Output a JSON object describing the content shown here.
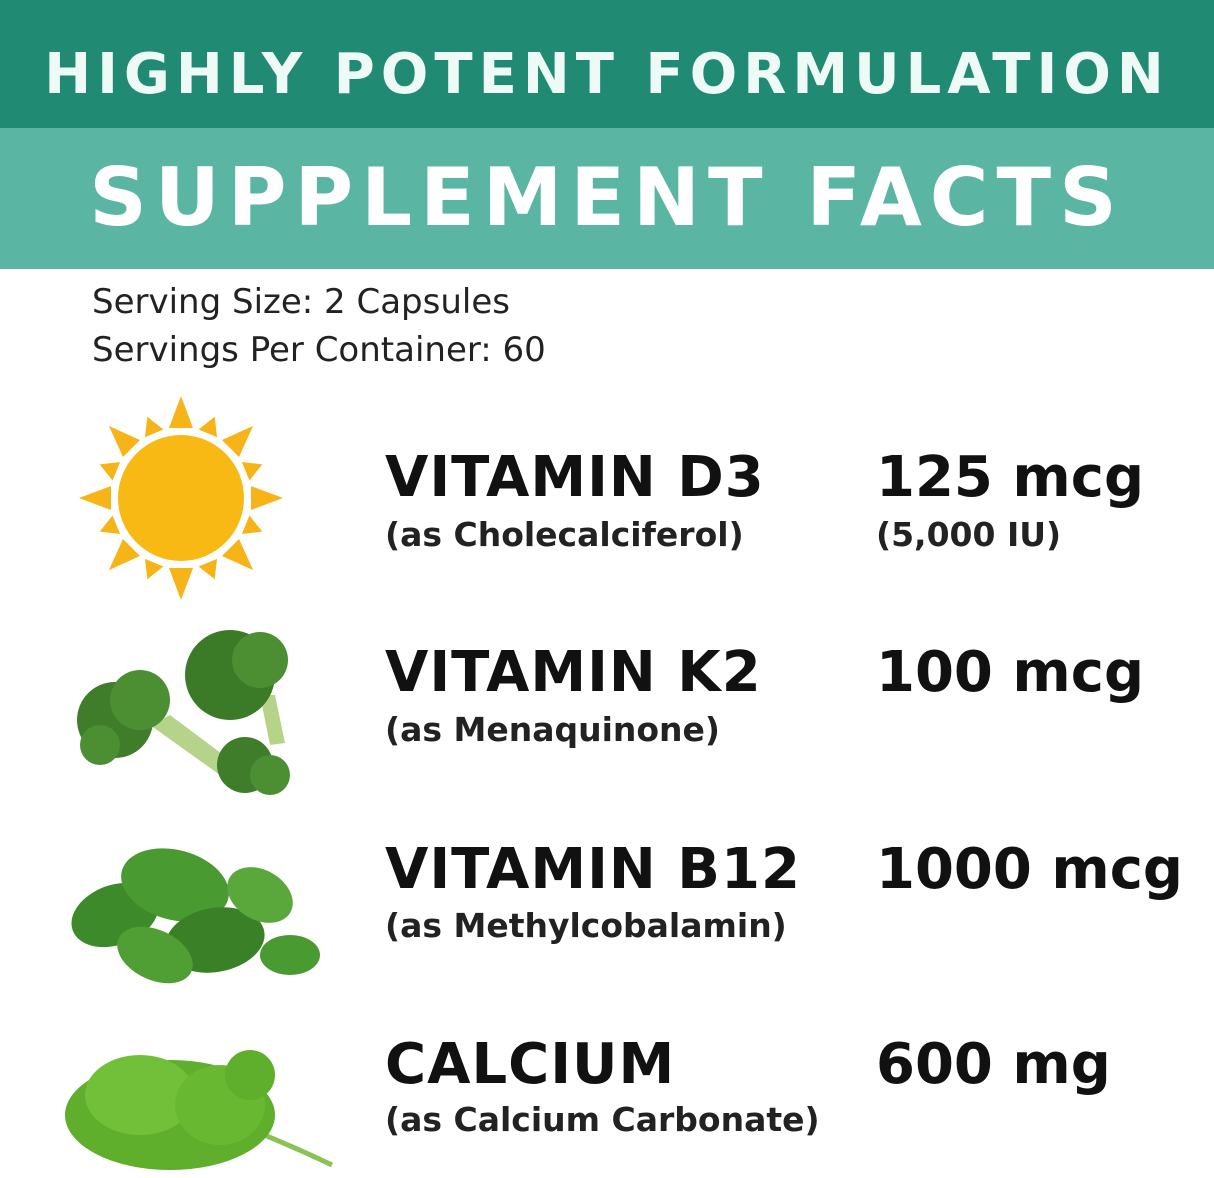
{
  "header": {
    "tagline": "HIGHLY POTENT FORMULATION",
    "title": "SUPPLEMENT FACTS",
    "colors": {
      "dark": "#208a72",
      "light": "#5ab6a2"
    }
  },
  "serving": {
    "size": "Serving Size: 2 Capsules",
    "per_container": "Servings Per Container: 60"
  },
  "nutrients": [
    {
      "name": "VITAMIN D3",
      "source": "(as Cholecalciferol)",
      "amount": "125 mcg",
      "amount_note": "(5,000 IU)",
      "icon": "sun-icon"
    },
    {
      "name": "VITAMIN K2",
      "source": "(as Menaquinone)",
      "amount": "100 mcg",
      "icon": "broccoli-icon"
    },
    {
      "name": "VITAMIN B12",
      "source": "(as Methylcobalamin)",
      "amount": "1000 mcg",
      "icon": "spinach-icon"
    },
    {
      "name": "CALCIUM",
      "source": "(as Calcium Carbonate)",
      "amount": "600 mg",
      "icon": "kale-icon"
    }
  ]
}
